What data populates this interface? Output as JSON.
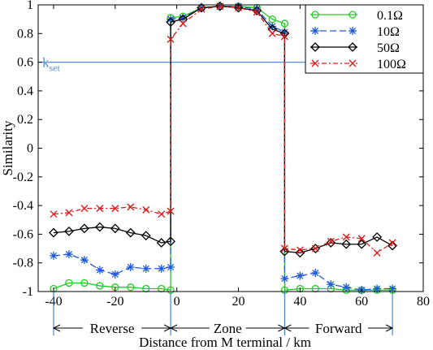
{
  "chart_data": {
    "type": "line",
    "title": "",
    "xlabel": "Distance from M terminal / km",
    "ylabel": "Similarity",
    "xlim": [
      -45,
      80
    ],
    "ylim": [
      -1,
      1
    ],
    "x_ticks": [
      -40,
      -20,
      0,
      20,
      40,
      60,
      80
    ],
    "x_tick_labels": [
      "-40",
      "-20",
      "0",
      "20",
      "40",
      "60",
      "80"
    ],
    "y_ticks": [
      1,
      0.8,
      0.6,
      0.4,
      0.2,
      0,
      -0.2,
      -0.4,
      -0.6,
      -0.8,
      -1
    ],
    "y_tick_labels": [
      "1",
      "0.8",
      "0.6",
      "0.4",
      "0.2",
      "0",
      "-0.2",
      "-0.4",
      "-0.6",
      "-0.8",
      "-1"
    ],
    "grid": false,
    "legend_position": "top-right",
    "threshold": {
      "label_main": "k",
      "label_sub": "set",
      "value": 0.6,
      "color": "#5b8fd6"
    },
    "regions": {
      "boundaries": [
        -40,
        -2,
        35,
        70
      ],
      "labels": [
        "Reverse",
        "Zone",
        "Forward"
      ]
    },
    "series": [
      {
        "name": "0.1Ω",
        "color": "#22cc22",
        "marker": "circle",
        "dash": "",
        "x": [
          -40,
          -35,
          -30,
          -25,
          -20,
          -15,
          -10,
          -5,
          -2,
          -2,
          2,
          8,
          14,
          20,
          26,
          31,
          35,
          35,
          40,
          45,
          50,
          55,
          60,
          65,
          70
        ],
        "y": [
          -0.98,
          -0.94,
          -0.94,
          -0.96,
          -0.97,
          -0.97,
          -0.98,
          -0.98,
          -0.99,
          0.91,
          0.92,
          0.98,
          0.99,
          0.99,
          0.98,
          0.9,
          0.87,
          -0.99,
          -0.98,
          -0.98,
          -0.98,
          -0.99,
          -0.99,
          -0.99,
          -0.99
        ]
      },
      {
        "name": "10Ω",
        "color": "#1f5bd8",
        "marker": "star",
        "dash": "8,4",
        "x": [
          -40,
          -35,
          -30,
          -25,
          -20,
          -15,
          -10,
          -5,
          -2,
          -2,
          2,
          8,
          14,
          20,
          26,
          31,
          35,
          35,
          40,
          45,
          50,
          55,
          60,
          65,
          70
        ],
        "y": [
          -0.75,
          -0.74,
          -0.78,
          -0.85,
          -0.88,
          -0.83,
          -0.84,
          -0.84,
          -0.83,
          0.9,
          0.91,
          0.98,
          0.99,
          0.99,
          0.97,
          0.85,
          0.81,
          -0.91,
          -0.89,
          -0.87,
          -0.95,
          -0.97,
          -0.99,
          -0.98,
          -0.98
        ]
      },
      {
        "name": "50Ω",
        "color": "#000000",
        "marker": "diamond",
        "dash": "",
        "x": [
          -40,
          -35,
          -30,
          -25,
          -20,
          -15,
          -10,
          -5,
          -2,
          -2,
          2,
          8,
          14,
          20,
          26,
          31,
          35,
          35,
          40,
          45,
          50,
          55,
          60,
          65,
          70
        ],
        "y": [
          -0.59,
          -0.58,
          -0.56,
          -0.55,
          -0.56,
          -0.59,
          -0.61,
          -0.66,
          -0.65,
          0.88,
          0.9,
          0.98,
          0.99,
          0.98,
          0.96,
          0.83,
          0.8,
          -0.72,
          -0.73,
          -0.7,
          -0.66,
          -0.67,
          -0.67,
          -0.62,
          -0.68
        ]
      },
      {
        "name": "100Ω",
        "color": "#dd1c1c",
        "marker": "cross",
        "dash": "6,3,2,3",
        "x": [
          -40,
          -35,
          -30,
          -25,
          -20,
          -15,
          -10,
          -5,
          -2,
          -2,
          2,
          8,
          14,
          20,
          26,
          31,
          35,
          35,
          40,
          45,
          50,
          55,
          60,
          65,
          70
        ],
        "y": [
          -0.46,
          -0.45,
          -0.42,
          -0.42,
          -0.42,
          -0.41,
          -0.43,
          -0.46,
          -0.44,
          0.76,
          0.87,
          0.97,
          0.99,
          0.98,
          0.95,
          0.8,
          0.78,
          -0.7,
          -0.71,
          -0.7,
          -0.65,
          -0.62,
          -0.63,
          -0.73,
          -0.66
        ]
      }
    ]
  }
}
